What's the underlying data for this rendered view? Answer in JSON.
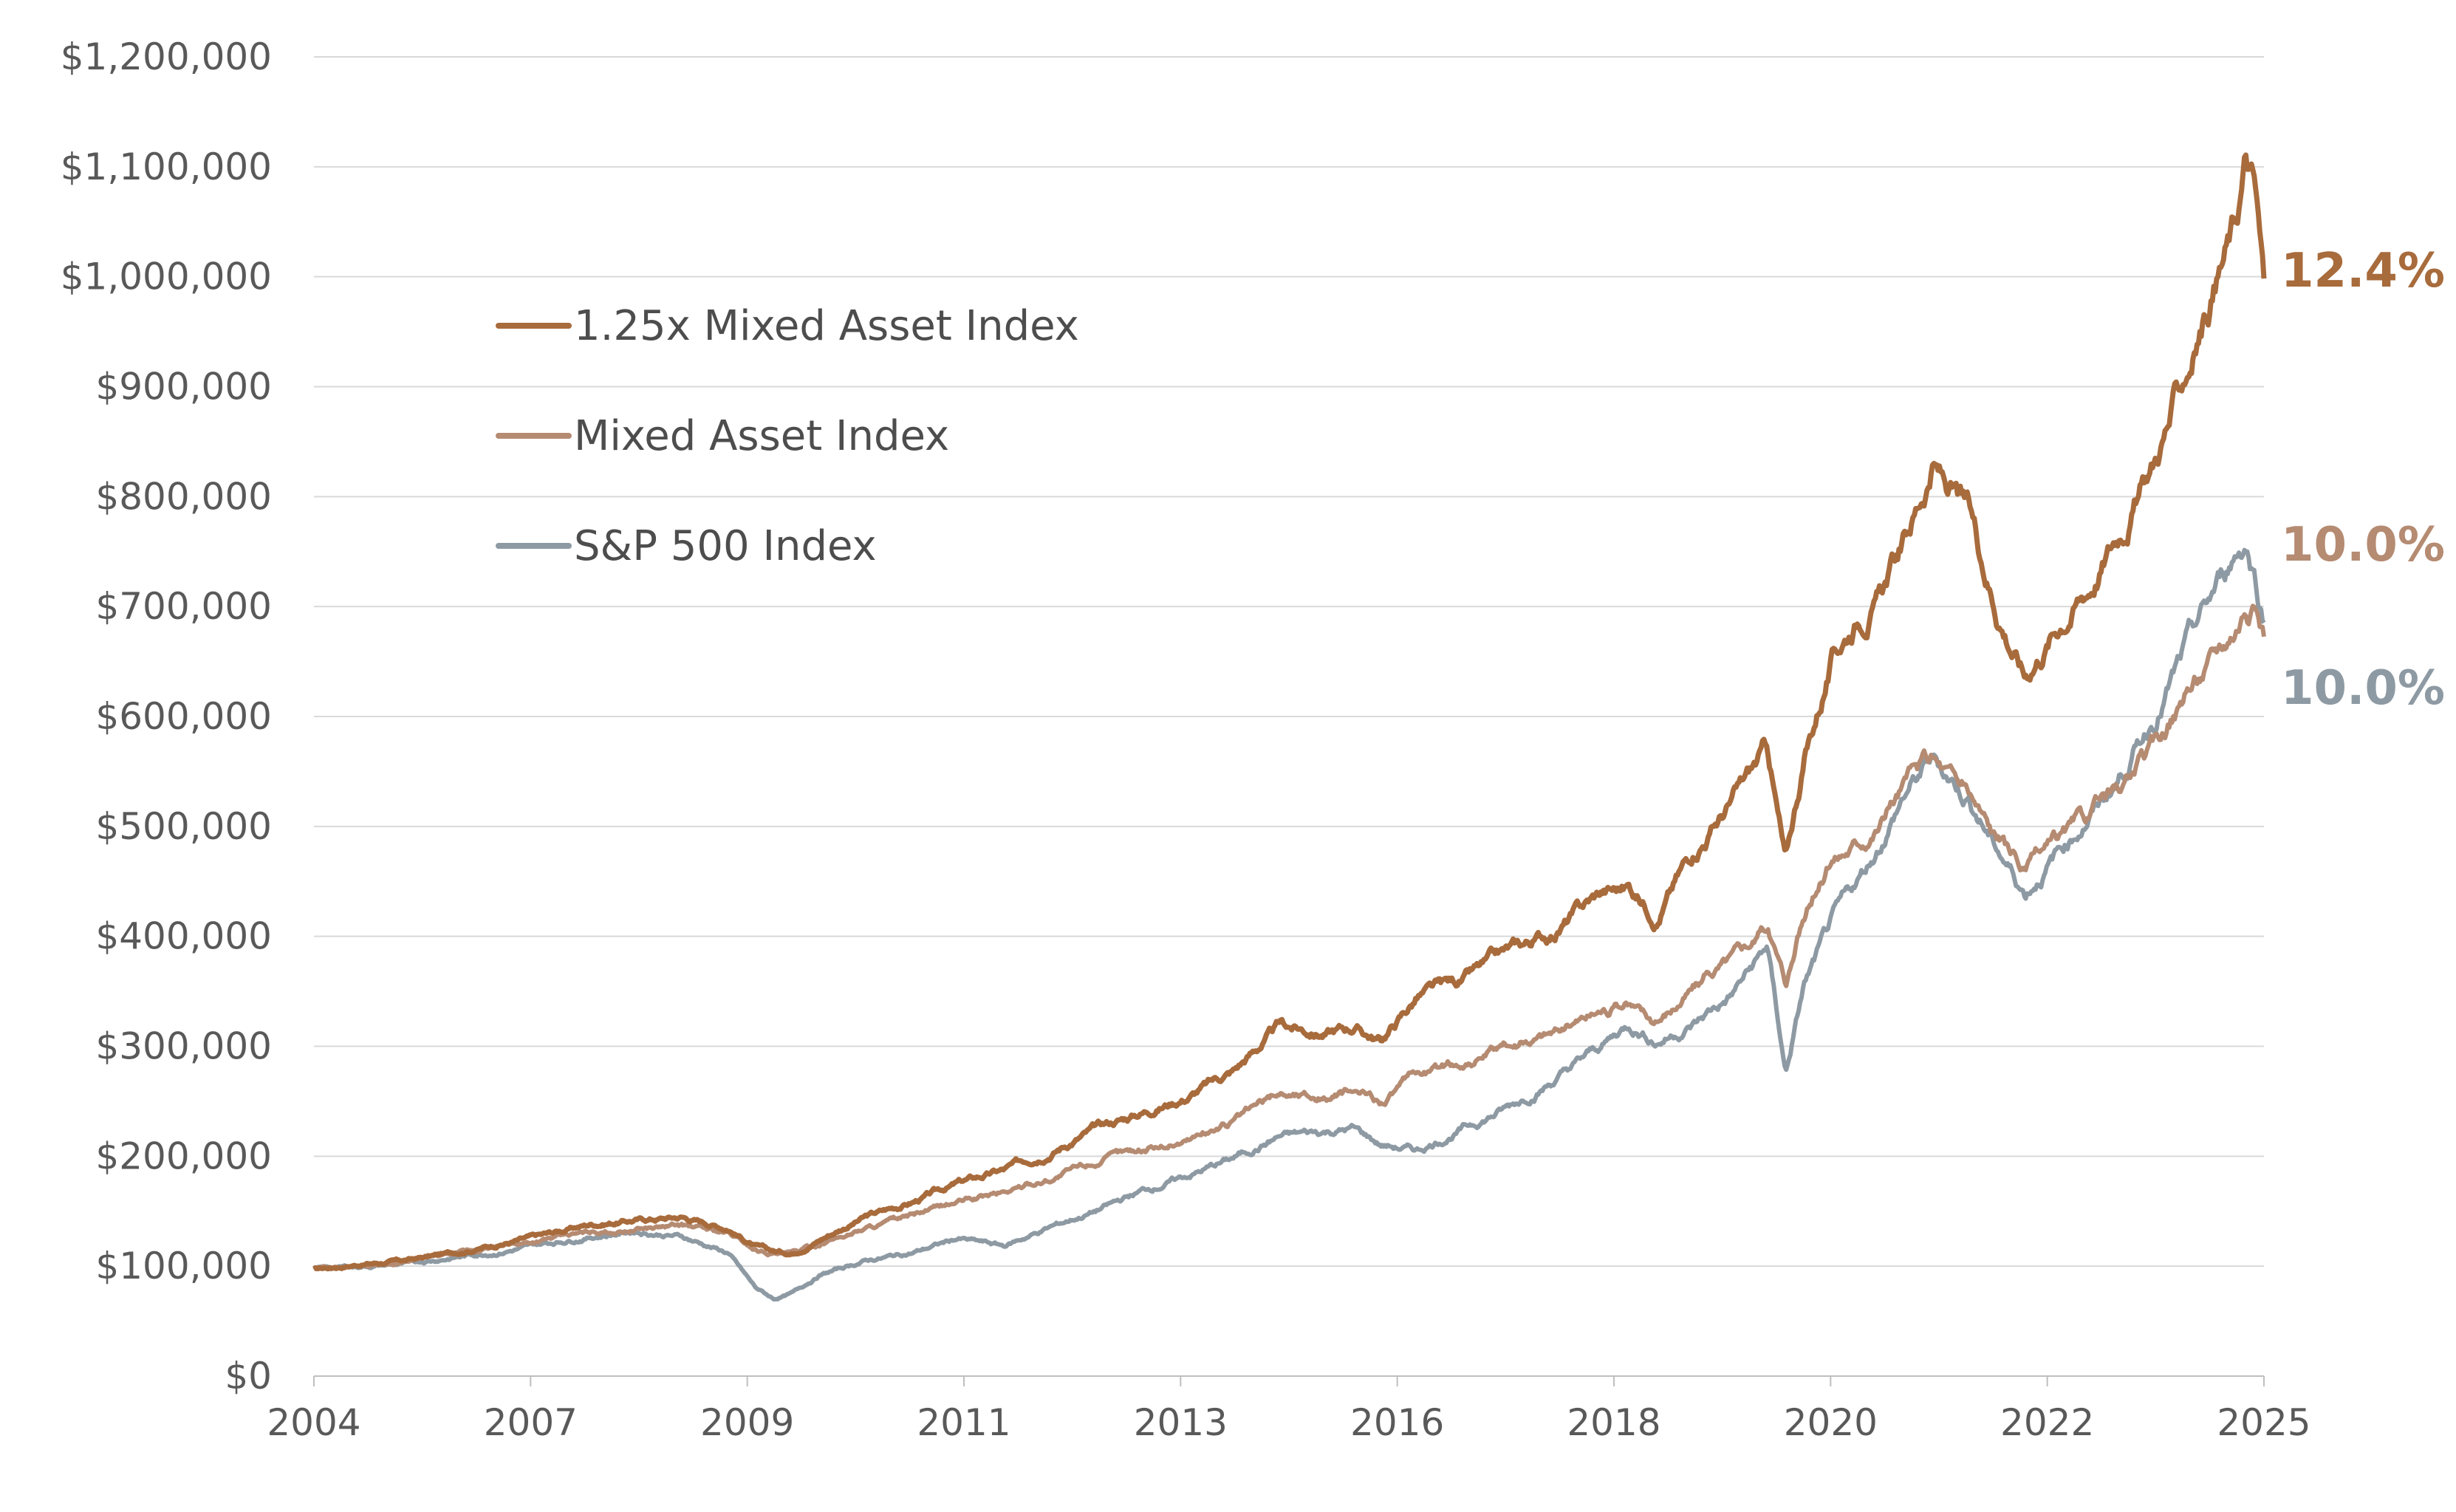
{
  "chart_data": {
    "type": "line",
    "title": "",
    "xlabel": "",
    "ylabel": "",
    "xlim": [
      2004,
      2025.2
    ],
    "ylim": [
      0,
      1200000
    ],
    "grid": true,
    "legend_position": "upper-left",
    "x_tick_labels": [
      "2004",
      "2007",
      "2009",
      "2011",
      "2013",
      "2016",
      "2018",
      "2020",
      "2022",
      "2025"
    ],
    "y_ticks": [
      0,
      100000,
      200000,
      300000,
      400000,
      500000,
      600000,
      700000,
      800000,
      900000,
      1000000,
      1100000,
      1200000
    ],
    "y_tick_labels": [
      "$0",
      "$100,000",
      "$200,000",
      "$300,000",
      "$400,000",
      "$500,000",
      "$600,000",
      "$700,000",
      "$800,000",
      "$900,000",
      "$1,000,000",
      "$1,100,000",
      "$1,200,000"
    ],
    "series": [
      {
        "name": "1.25x Mixed Asset Index",
        "color": "#a86b3c",
        "end_label": "12.4%",
        "x": [
          2004.0,
          2004.5,
          2005.0,
          2005.5,
          2006.0,
          2006.5,
          2007.0,
          2007.5,
          2008.0,
          2008.5,
          2008.8,
          2009.0,
          2009.2,
          2009.5,
          2010.0,
          2010.5,
          2011.0,
          2011.5,
          2012.0,
          2012.5,
          2013.0,
          2013.5,
          2014.0,
          2014.5,
          2015.0,
          2015.3,
          2015.6,
          2016.0,
          2016.5,
          2017.0,
          2017.5,
          2018.0,
          2018.3,
          2018.6,
          2019.0,
          2019.4,
          2019.8,
          2020.0,
          2020.2,
          2020.5,
          2020.8,
          2021.0,
          2021.3,
          2021.6,
          2022.0,
          2022.3,
          2022.6,
          2023.0,
          2023.3,
          2023.6,
          2024.0,
          2024.3,
          2024.6,
          2024.9,
          2025.0,
          2025.1,
          2025.2
        ],
        "values": [
          97000,
          102000,
          105000,
          112000,
          120000,
          128000,
          138000,
          142000,
          145000,
          135000,
          118000,
          113000,
          112000,
          125000,
          145000,
          158000,
          175000,
          187000,
          205000,
          225000,
          240000,
          255000,
          278000,
          318000,
          312000,
          318000,
          305000,
          345000,
          360000,
          385000,
          405000,
          440000,
          445000,
          420000,
          480000,
          520000,
          570000,
          465000,
          560000,
          650000,
          695000,
          705000,
          760000,
          830000,
          780000,
          700000,
          640000,
          690000,
          720000,
          765000,
          830000,
          900000,
          975000,
          1050000,
          1105000,
          1080000,
          990000
        ]
      },
      {
        "name": "Mixed Asset Index",
        "color": "#b58b72",
        "end_label": "10.0%",
        "x": [
          2004.0,
          2004.5,
          2005.0,
          2005.5,
          2006.0,
          2006.5,
          2007.0,
          2007.5,
          2008.0,
          2008.5,
          2008.8,
          2009.0,
          2009.2,
          2009.5,
          2010.0,
          2010.5,
          2011.0,
          2011.5,
          2012.0,
          2012.5,
          2013.0,
          2013.5,
          2014.0,
          2014.5,
          2015.0,
          2015.3,
          2015.6,
          2016.0,
          2016.5,
          2017.0,
          2017.5,
          2018.0,
          2018.3,
          2018.6,
          2019.0,
          2019.4,
          2019.8,
          2020.0,
          2020.2,
          2020.5,
          2020.8,
          2021.0,
          2021.3,
          2021.6,
          2022.0,
          2022.3,
          2022.6,
          2023.0,
          2023.3,
          2023.6,
          2024.0,
          2024.3,
          2024.6,
          2024.9,
          2025.0,
          2025.1,
          2025.2
        ],
        "values": [
          97000,
          101000,
          104000,
          110000,
          117000,
          124000,
          130000,
          134000,
          137000,
          130000,
          115000,
          112000,
          111000,
          120000,
          135000,
          145000,
          158000,
          167000,
          180000,
          195000,
          206000,
          216000,
          232000,
          258000,
          255000,
          258000,
          250000,
          275000,
          285000,
          300000,
          315000,
          335000,
          338000,
          322000,
          355000,
          380000,
          410000,
          360000,
          420000,
          470000,
          490000,
          505000,
          540000,
          560000,
          530000,
          490000,
          460000,
          490000,
          510000,
          530000,
          570000,
          615000,
          650000,
          690000,
          710000,
          700000,
          680000
        ]
      },
      {
        "name": "S&P 500 Index",
        "color": "#8e9aa3",
        "end_label": "10.0%",
        "x": [
          2004.0,
          2004.5,
          2005.0,
          2005.5,
          2006.0,
          2006.5,
          2007.0,
          2007.5,
          2008.0,
          2008.5,
          2008.8,
          2009.0,
          2009.2,
          2009.5,
          2010.0,
          2010.5,
          2011.0,
          2011.5,
          2012.0,
          2012.5,
          2013.0,
          2013.5,
          2014.0,
          2014.5,
          2015.0,
          2015.3,
          2015.6,
          2016.0,
          2016.5,
          2017.0,
          2017.5,
          2018.0,
          2018.3,
          2018.6,
          2019.0,
          2019.4,
          2019.8,
          2020.0,
          2020.2,
          2020.5,
          2020.8,
          2021.0,
          2021.3,
          2021.6,
          2022.0,
          2022.3,
          2022.6,
          2023.0,
          2023.3,
          2023.6,
          2024.0,
          2024.3,
          2024.6,
          2024.9,
          2025.0,
          2025.1,
          2025.2
        ],
        "values": [
          97000,
          100000,
          102000,
          108000,
          113000,
          120000,
          127000,
          132000,
          127000,
          112000,
          80000,
          70000,
          75000,
          92000,
          105000,
          112000,
          125000,
          118000,
          135000,
          150000,
          168000,
          182000,
          198000,
          218000,
          222000,
          225000,
          210000,
          205000,
          225000,
          245000,
          270000,
          300000,
          320000,
          305000,
          320000,
          345000,
          390000,
          275000,
          355000,
          410000,
          450000,
          480000,
          530000,
          560000,
          525000,
          480000,
          440000,
          480000,
          510000,
          540000,
          600000,
          650000,
          700000,
          750000,
          760000,
          730000,
          690000
        ]
      }
    ]
  }
}
